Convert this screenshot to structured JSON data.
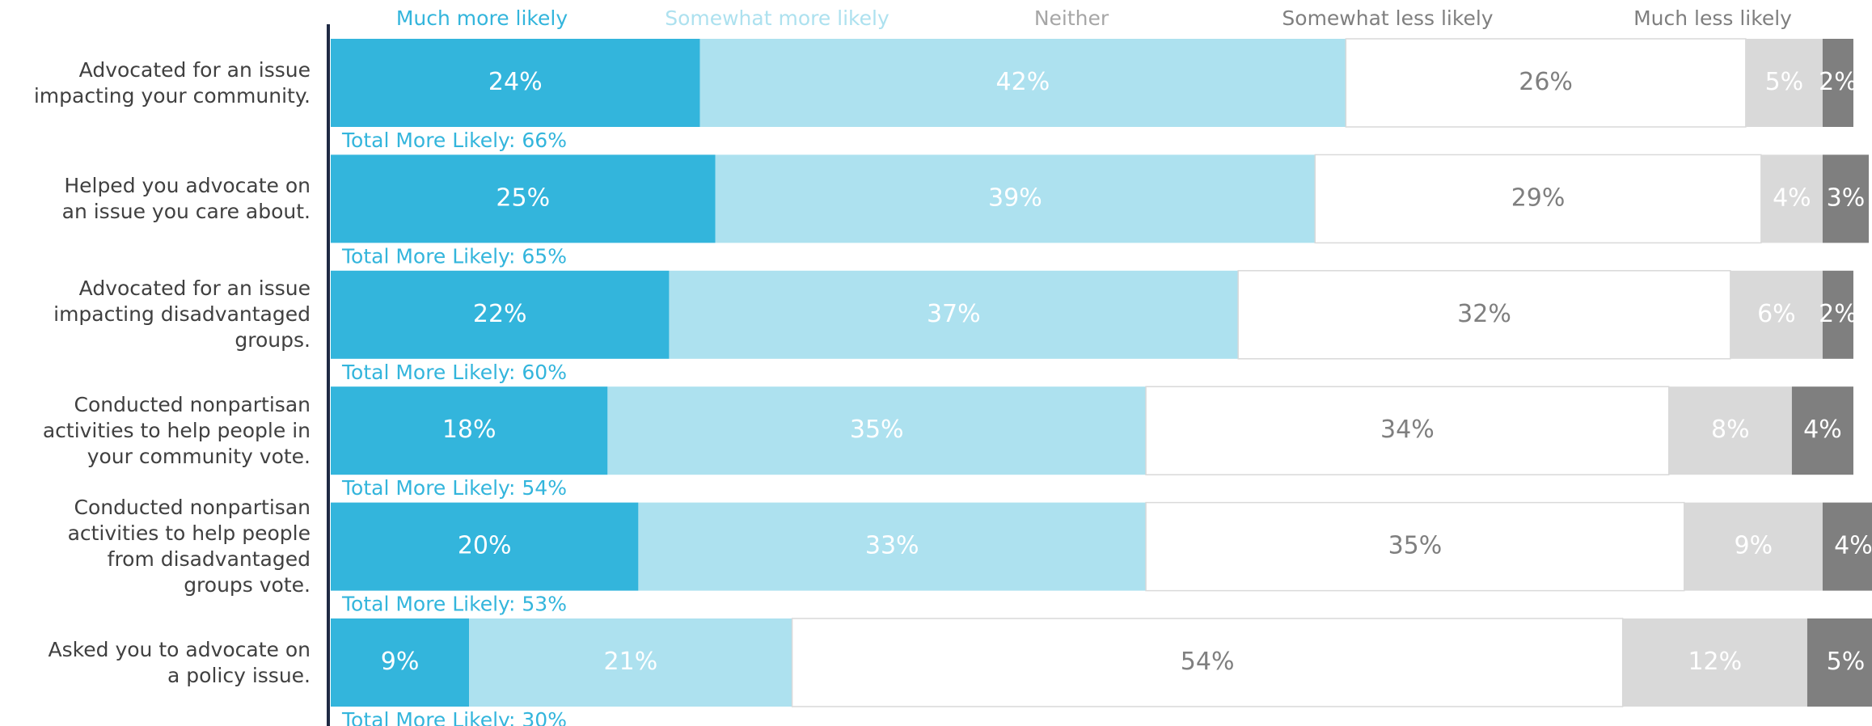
{
  "chart_data": {
    "type": "stacked-bar-horizontal",
    "categories": [
      "Advocated for an issue\nimpacting your community.",
      "Helped you advocate on\nan issue you care about.",
      "Advocated for an issue\nimpacting disadvantaged\ngroups.",
      "Conducted nonpartisan\nactivities to help people in\nyour community vote.",
      "Conducted nonpartisan\nactivities to help people\nfrom disadvantaged\ngroups vote.",
      "Asked you to advocate on\na policy issue."
    ],
    "series": [
      {
        "name": "Much more likely",
        "color": "#33b5dc",
        "values": [
          24,
          25,
          22,
          18,
          20,
          9
        ],
        "value_labels": [
          "24%",
          "25%",
          "22%",
          "18%",
          "20%",
          "9%"
        ]
      },
      {
        "name": "Somewhat more likely",
        "color": "#ade1ef",
        "values": [
          42,
          39,
          37,
          35,
          33,
          21
        ],
        "value_labels": [
          "42%",
          "39%",
          "37%",
          "35%",
          "33%",
          "21%"
        ]
      },
      {
        "name": "Neither",
        "color": "#ffffff",
        "values": [
          26,
          29,
          32,
          34,
          35,
          54
        ],
        "value_labels": [
          "26%",
          "29%",
          "32%",
          "34%",
          "35%",
          "54%"
        ]
      },
      {
        "name": "Somewhat less likely",
        "color": "#d9d9d9",
        "values": [
          5,
          4,
          6,
          8,
          9,
          12
        ],
        "value_labels": [
          "5%",
          "4%",
          "6%",
          "8%",
          "9%",
          "12%"
        ]
      },
      {
        "name": "Much less likely",
        "color": "#7f7f7f",
        "values": [
          2,
          3,
          2,
          4,
          4,
          5
        ],
        "value_labels": [
          "2%",
          "3%",
          "2%",
          "4%",
          "4%",
          "5%"
        ]
      }
    ],
    "annotations": [
      "Total More Likely: 66%",
      "Total More Likely: 65%",
      "Total More Likely: 60%",
      "Total More Likely: 54%",
      "Total More Likely: 53%",
      "Total More Likely: 30%"
    ],
    "xlim": [
      0,
      100
    ]
  }
}
